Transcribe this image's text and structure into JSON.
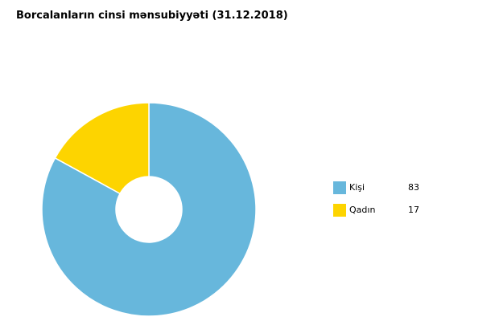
{
  "chart_data": {
    "type": "pie",
    "donut": true,
    "title": "Borcalanların cinsi mənsubiyyəti (31.12.2018)",
    "categories": [
      "Kişi",
      "Qadın"
    ],
    "values": [
      83,
      17
    ],
    "colors": [
      "#67b7dc",
      "#fdd400"
    ],
    "legend_position": "right"
  }
}
